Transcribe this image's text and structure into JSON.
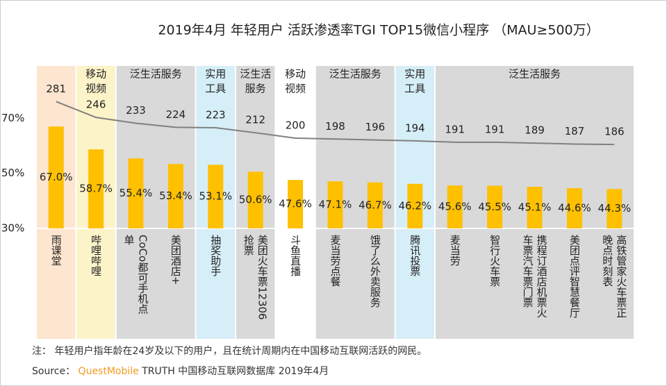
{
  "chart_data": {
    "type": "bar-line",
    "title": "2019年4月  年轻用户 活跃渗透率TGI TOP15微信小程序  （MAU≥500万）",
    "categories": [
      "雨课堂",
      "哔哩哔哩",
      "CoCo都可手机点单",
      "美团酒店+",
      "抽奖助手",
      "美团火车票12306抢票",
      "斗鱼直播",
      "麦当劳点餐",
      "饿了么外卖服务",
      "腾讯投票",
      "麦当劳",
      "智行火车票",
      "携程订酒店机票火车票汽车票门票",
      "美团点评智慧餐厅",
      "高铁管家火车票正晚点时刻表"
    ],
    "series": [
      {
        "color": "#ffc000",
        "values": [
          67.0,
          58.7,
          55.4,
          53.4,
          53.1,
          50.6,
          47.6,
          47.1,
          46.7,
          46.2,
          45.6,
          45.5,
          45.1,
          44.6,
          44.3
        ],
        "value_labels": [
          "67.0%",
          "58.7%",
          "55.4%",
          "53.4%",
          "53.1%",
          "50.6%",
          "47.6%",
          "47.1%",
          "46.7%",
          "46.2%",
          "45.6%",
          "45.5%",
          "45.1%",
          "44.6%",
          "44.3%"
        ]
      },
      {
        "type": "line",
        "axis": "y2",
        "color": "#808080",
        "values": [
          281,
          246,
          233,
          224,
          223,
          212,
          200,
          198,
          196,
          194,
          191,
          191,
          189,
          187,
          186
        ]
      }
    ],
    "ylim": [
      30,
      89
    ],
    "yticks": [
      {
        "value": 30,
        "label": "30%"
      },
      {
        "value": 50,
        "label": "50%"
      },
      {
        "value": 70,
        "label": "70%"
      }
    ],
    "y2lim": [
      0,
      360
    ],
    "groups": [
      {
        "span": [
          0,
          0
        ],
        "color": "#fde5cf",
        "label": []
      },
      {
        "span": [
          1,
          1
        ],
        "color": "#fdf3c9",
        "label": [
          "移动",
          "视频"
        ]
      },
      {
        "span": [
          2,
          3
        ],
        "color": "#d9d9d9",
        "label": [
          "泛生活服务"
        ]
      },
      {
        "span": [
          4,
          4
        ],
        "color": "#d6eef7",
        "label": [
          "实用",
          "工具"
        ]
      },
      {
        "span": [
          5,
          5
        ],
        "color": "#d9d9d9",
        "label": [
          "泛生活",
          "服务"
        ]
      },
      {
        "span": [
          6,
          6
        ],
        "color": "#ffffff",
        "label": [
          "移动",
          "视频"
        ]
      },
      {
        "span": [
          7,
          8
        ],
        "color": "#d9d9d9",
        "label": [
          "泛生活服务"
        ]
      },
      {
        "span": [
          9,
          9
        ],
        "color": "#d6eef7",
        "label": [
          "实用",
          "工具"
        ]
      },
      {
        "span": [
          10,
          14
        ],
        "color": "#d9d9d9",
        "label": [
          "泛生活服务"
        ]
      }
    ],
    "note": "注：  年轻用户指年龄在24岁及以下的用户，且在统计周期内在中国移动互联网活跃的网民。",
    "source": {
      "label": "Source：",
      "brand": "QuestMobile",
      "text": "TRUTH 中国移动互联网数据库 2019年4月"
    }
  }
}
